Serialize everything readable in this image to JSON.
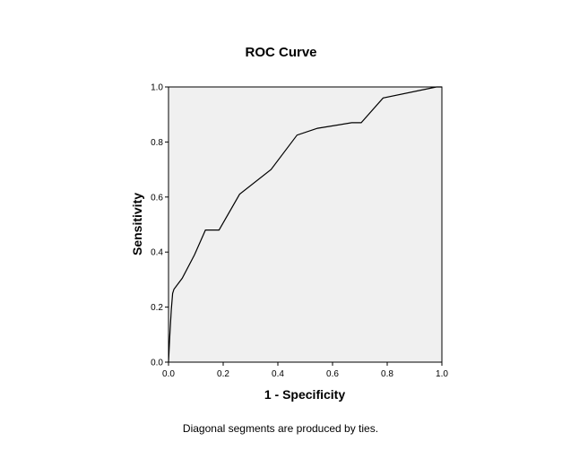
{
  "chart_data": {
    "type": "line",
    "title": "ROC Curve",
    "xlabel": "1 - Specificity",
    "ylabel": "Sensitivity",
    "xlim": [
      0,
      1
    ],
    "ylim": [
      0,
      1
    ],
    "xticks": [
      "0.0",
      "0.2",
      "0.4",
      "0.6",
      "0.8",
      "1.0"
    ],
    "yticks": [
      "0.0",
      "0.2",
      "0.4",
      "0.6",
      "0.8",
      "1.0"
    ],
    "grid": false,
    "footnote": "Diagonal segments are produced by ties.",
    "colors": {
      "plot_background": "#f0f0f0",
      "line": "#000000",
      "frame": "#000000"
    },
    "series": [
      {
        "x": [
          0.0,
          0.005,
          0.01,
          0.015,
          0.02,
          0.05,
          0.095,
          0.135,
          0.185,
          0.26,
          0.375,
          0.47,
          0.545,
          0.67,
          0.705,
          0.785,
          0.98,
          1.0
        ],
        "y": [
          0.0,
          0.1,
          0.19,
          0.25,
          0.265,
          0.305,
          0.39,
          0.48,
          0.48,
          0.61,
          0.7,
          0.825,
          0.85,
          0.87,
          0.87,
          0.96,
          1.0,
          1.0
        ]
      }
    ]
  }
}
